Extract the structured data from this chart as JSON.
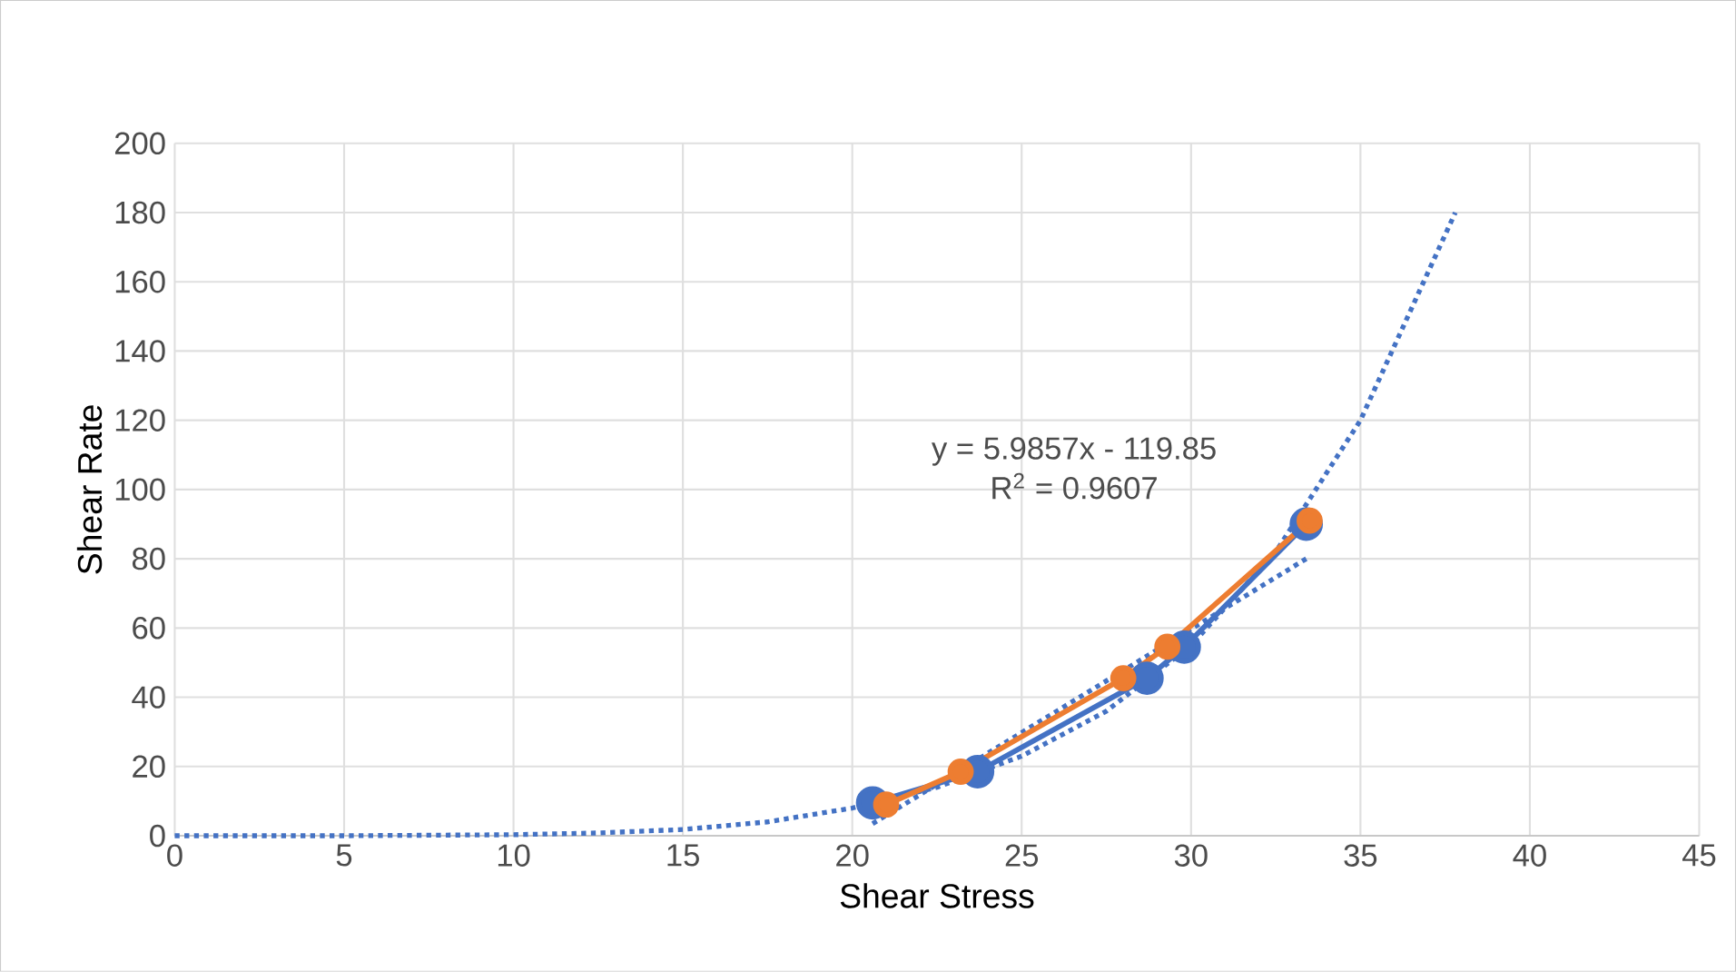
{
  "chart_data": {
    "type": "line",
    "xlabel": "Shear Stress",
    "ylabel": "Shear Rate",
    "xlim": [
      0,
      45
    ],
    "xticks": [
      0,
      5,
      10,
      15,
      20,
      25,
      30,
      35,
      40,
      45
    ],
    "ylim": [
      0,
      200
    ],
    "yticks": [
      0,
      20,
      40,
      60,
      80,
      100,
      120,
      140,
      160,
      180,
      200
    ],
    "grid": true,
    "annotations": [
      "y = 5.9857x - 119.85",
      "R$^{2}$ = 0.9607"
    ],
    "series": [
      {
        "color": "#4472c4",
        "marker": "circle",
        "x": [
          20.6,
          23.7,
          28.7,
          29.8,
          33.4
        ],
        "values": [
          9.5,
          18.5,
          45.5,
          54.5,
          90
        ]
      },
      {
        "color": "#ed7d31",
        "marker": "circle",
        "x": [
          21.0,
          23.2,
          28.0,
          29.3,
          33.5
        ],
        "values": [
          9,
          18.5,
          45.5,
          54.6,
          91
        ]
      },
      {
        "color": "#4472c4",
        "marker": "none",
        "line_style": "dotted",
        "x": [
          0,
          5,
          10,
          12.5,
          15,
          17.5,
          20,
          22.5,
          25,
          27.5,
          30,
          32.5,
          35,
          37.8
        ],
        "values": [
          0,
          0,
          0.3,
          0.8,
          1.8,
          4,
          8,
          14,
          23,
          36,
          55,
          82,
          120,
          180
        ]
      },
      {
        "color": "#4472c4",
        "marker": "none",
        "line_style": "dotted",
        "x": [
          20.6,
          33.4
        ],
        "values": [
          3.5,
          80
        ]
      }
    ]
  }
}
